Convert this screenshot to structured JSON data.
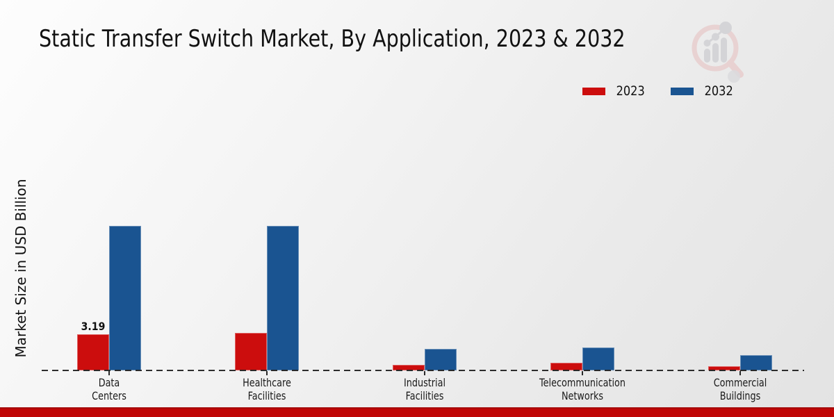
{
  "title": "Static Transfer Switch Market, By Application, 2023 & 2032",
  "y_axis_label": "Market Size in USD Billion",
  "legend": {
    "items": [
      {
        "label": "2023",
        "color": "#cc0d0d"
      },
      {
        "label": "2032",
        "color": "#1a5491"
      }
    ]
  },
  "colors": {
    "series_2023": "#cc0d0d",
    "series_2032": "#1a5491",
    "footer_bar": "#c00505",
    "baseline": "#1c1c1c",
    "watermark_pink": "#e8cccc",
    "watermark_gray": "#cfcfd3"
  },
  "watermark_icon": "magnifier-bar-chart-logo",
  "chart_data": {
    "type": "bar",
    "title": "Static Transfer Switch Market, By Application, 2023 & 2032",
    "categories": [
      "Data Centers",
      "Healthcare Facilities",
      "Industrial Facilities",
      "Telecommunication Networks",
      "Commercial Buildings"
    ],
    "series": [
      {
        "name": "2023",
        "color": "#cc0d0d",
        "values": [
          3.19,
          3.3,
          0.5,
          0.68,
          0.38
        ]
      },
      {
        "name": "2032",
        "color": "#1a5491",
        "values": [
          12.75,
          12.75,
          1.9,
          2.0,
          1.35
        ]
      }
    ],
    "annotations": [
      {
        "series": "2023",
        "category": "Data Centers",
        "text": "3.19"
      }
    ],
    "xlabel": "",
    "ylabel": "Market Size in USD Billion",
    "ylim": [
      0,
      14
    ],
    "grid": false,
    "y_axis_ticks_visible": false,
    "baseline_style": "dashed",
    "legend_position": "top-right"
  }
}
